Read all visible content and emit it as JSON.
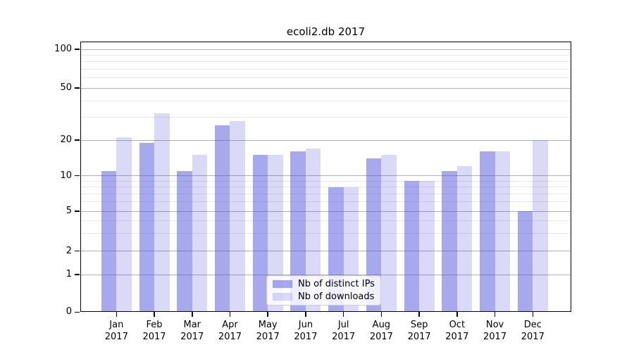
{
  "title": "ecoli2.db 2017",
  "legend": {
    "items": [
      {
        "label": "Nb of distinct IPs"
      },
      {
        "label": "Nb of downloads"
      }
    ]
  },
  "chart_data": {
    "type": "bar",
    "title": "ecoli2.db 2017",
    "categories": [
      "Jan",
      "Feb",
      "Mar",
      "Apr",
      "May",
      "Jun",
      "Jul",
      "Aug",
      "Sep",
      "Oct",
      "Nov",
      "Dec"
    ],
    "category_year": "2017",
    "series": [
      {
        "name": "Nb of distinct IPs",
        "color": "rgba(70,70,220,0.47)",
        "values": [
          11,
          19,
          11,
          26,
          15,
          16,
          8,
          14,
          9,
          11,
          16,
          5
        ]
      },
      {
        "name": "Nb of downloads",
        "color": "rgba(70,70,220,0.2)",
        "values": [
          21,
          32,
          15,
          28,
          15,
          17,
          8,
          15,
          9,
          12,
          16,
          20
        ]
      }
    ],
    "xlabel": "",
    "ylabel": "",
    "yscale": "symlog",
    "ylim": [
      0,
      110
    ],
    "y_ticks": [
      0,
      1,
      2,
      5,
      10,
      20,
      50,
      100
    ],
    "y_minor_ticks": [
      3,
      4,
      6,
      7,
      8,
      9,
      30,
      40,
      60,
      70,
      80,
      90
    ],
    "grid": true,
    "legend_position": "lower center"
  }
}
